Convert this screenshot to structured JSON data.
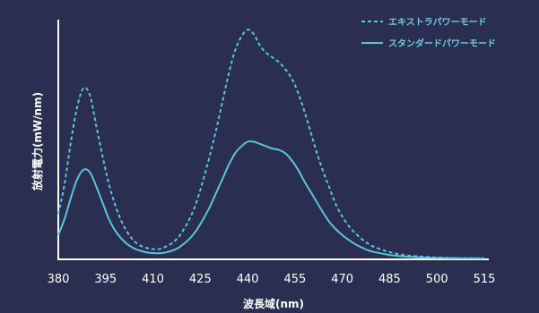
{
  "chart_data": {
    "type": "line",
    "xlabel": "波長域(nm)",
    "ylabel": "放射電力(mW/nm)",
    "xlim": [
      380,
      515
    ],
    "ylim": [
      0,
      100
    ],
    "xticks": [
      "380",
      "395",
      "410",
      "425",
      "440",
      "455",
      "470",
      "485",
      "500",
      "515"
    ],
    "grid": false,
    "legend_position": "top-right",
    "colors": {
      "line": "#5cc3dc",
      "axis": "#ffffff",
      "background": "#2a2f52"
    },
    "series": [
      {
        "name": "エキストラパワーモード",
        "style": "dashed",
        "x": [
          380,
          382,
          384,
          386,
          388,
          390,
          392,
          394,
          396,
          398,
          400,
          402,
          404,
          406,
          408,
          410,
          412,
          414,
          416,
          418,
          420,
          422,
          424,
          426,
          428,
          430,
          432,
          434,
          436,
          438,
          440,
          442,
          444,
          446,
          448,
          450,
          452,
          454,
          456,
          458,
          460,
          462,
          464,
          466,
          468,
          470,
          472,
          474,
          476,
          478,
          480,
          485,
          490,
          495,
          500,
          505,
          510,
          515
        ],
        "values": [
          19,
          32,
          50,
          65,
          73,
          70,
          57,
          44,
          32,
          23,
          16,
          11,
          7.5,
          5.5,
          4.5,
          4,
          4,
          5,
          6.5,
          9,
          13,
          18,
          25,
          34,
          44,
          55,
          67,
          79,
          89,
          95,
          98,
          96,
          91,
          88,
          86,
          84,
          81,
          77,
          71,
          63,
          54,
          45,
          37,
          30,
          23,
          18,
          14,
          11,
          8.5,
          6.5,
          5,
          2.7,
          1.4,
          0.8,
          0.4,
          0.2,
          0.1,
          0.1
        ]
      },
      {
        "name": "スタンダードパワーモード",
        "style": "solid",
        "x": [
          380,
          382,
          384,
          386,
          388,
          390,
          392,
          394,
          396,
          398,
          400,
          402,
          404,
          406,
          408,
          410,
          412,
          414,
          416,
          418,
          420,
          422,
          424,
          426,
          428,
          430,
          432,
          434,
          436,
          438,
          440,
          442,
          444,
          446,
          448,
          450,
          452,
          454,
          456,
          458,
          460,
          462,
          464,
          466,
          468,
          470,
          472,
          474,
          476,
          478,
          480,
          485,
          490,
          495,
          500,
          505,
          510,
          515
        ],
        "values": [
          10,
          17,
          26,
          34,
          38,
          37,
          31,
          24,
          17,
          12,
          8.5,
          6,
          4.3,
          3.3,
          2.6,
          2.3,
          2.2,
          2.6,
          3.3,
          4.5,
          6.5,
          9,
          12.5,
          17,
          22,
          28,
          34,
          40,
          45,
          48,
          50,
          50,
          49,
          48,
          47,
          46.5,
          45,
          42,
          38,
          33,
          28.5,
          24,
          19.5,
          15.5,
          12.5,
          10,
          8,
          6.2,
          4.8,
          3.6,
          2.8,
          1.5,
          0.8,
          0.4,
          0.2,
          0.1,
          0.05,
          0.02
        ]
      }
    ]
  }
}
